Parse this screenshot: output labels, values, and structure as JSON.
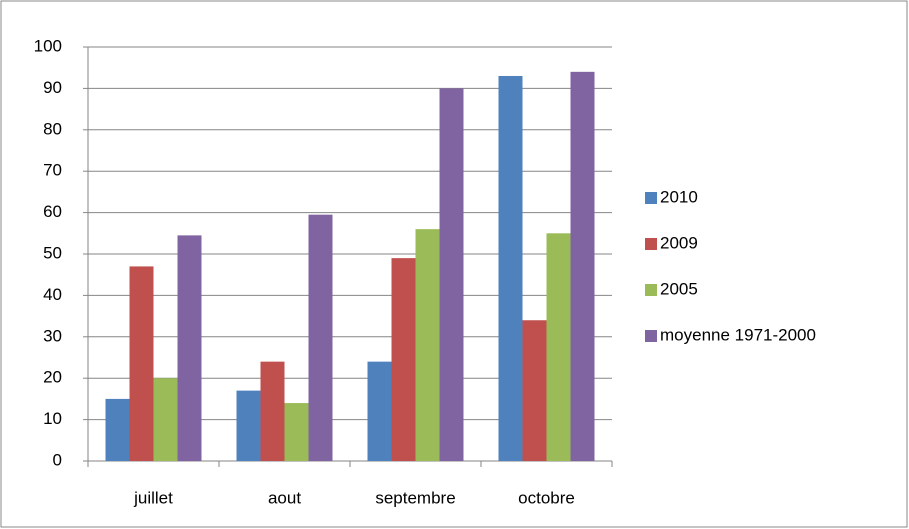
{
  "chart_data": {
    "type": "bar",
    "categories": [
      "juillet",
      "aout",
      "septembre",
      "octobre"
    ],
    "series": [
      {
        "name": "2010",
        "color": "#4f81bd",
        "values": [
          15,
          17,
          24,
          93
        ]
      },
      {
        "name": "2009",
        "color": "#c0504d",
        "values": [
          47,
          24,
          49,
          34
        ]
      },
      {
        "name": "2005",
        "color": "#9bbb59",
        "values": [
          20,
          14,
          56,
          55
        ]
      },
      {
        "name": "moyenne 1971-2000",
        "color": "#8064a2",
        "values": [
          54.5,
          59.5,
          90,
          94
        ]
      }
    ],
    "ylim": [
      0,
      100
    ],
    "yticks": [
      0,
      10,
      20,
      30,
      40,
      50,
      60,
      70,
      80,
      90,
      100
    ],
    "grid": true,
    "legend": "right"
  }
}
